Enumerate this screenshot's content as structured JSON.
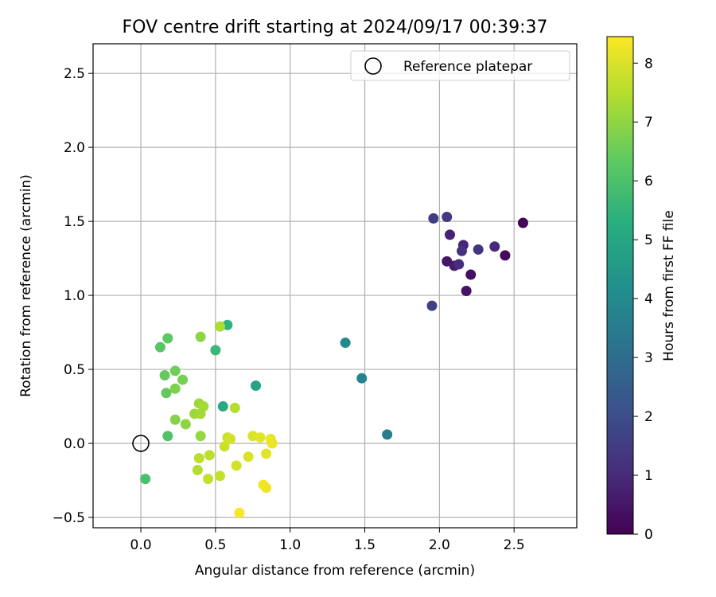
{
  "chart_data": {
    "type": "scatter",
    "title": "FOV centre drift starting at 2024/09/17 00:39:37",
    "xlabel": "Angular distance from reference (arcmin)",
    "ylabel": "Rotation from reference (arcmin)",
    "xlim": [
      -0.32,
      2.92
    ],
    "ylim": [
      -0.57,
      2.7
    ],
    "xticks": [
      0.0,
      0.5,
      1.0,
      1.5,
      2.0,
      2.5
    ],
    "xtick_labels": [
      "0.0",
      "0.5",
      "1.0",
      "1.5",
      "2.0",
      "2.5"
    ],
    "yticks": [
      -0.5,
      0.0,
      0.5,
      1.0,
      1.5,
      2.0,
      2.5
    ],
    "ytick_labels": [
      "−0.5",
      "0.0",
      "0.5",
      "1.0",
      "1.5",
      "2.0",
      "2.5"
    ],
    "grid": true,
    "legend": {
      "position": "upper right",
      "entries": [
        "Reference platepar"
      ]
    },
    "reference_point": {
      "x": 0.0,
      "y": 0.0
    },
    "colorbar": {
      "label": "Hours from first FF file",
      "colormap": "viridis",
      "range": [
        0,
        8.45
      ],
      "ticks": [
        0,
        1,
        2,
        3,
        4,
        5,
        6,
        7,
        8
      ],
      "tick_labels": [
        "0",
        "1",
        "2",
        "3",
        "4",
        "5",
        "6",
        "7",
        "8"
      ]
    },
    "points": [
      {
        "x": 2.56,
        "y": 1.49,
        "c": 0.1
      },
      {
        "x": 2.44,
        "y": 1.27,
        "c": 0.2
      },
      {
        "x": 2.21,
        "y": 1.14,
        "c": 0.3
      },
      {
        "x": 2.18,
        "y": 1.03,
        "c": 0.4
      },
      {
        "x": 2.05,
        "y": 1.23,
        "c": 0.5
      },
      {
        "x": 2.1,
        "y": 1.2,
        "c": 0.6
      },
      {
        "x": 2.07,
        "y": 1.41,
        "c": 0.8
      },
      {
        "x": 2.16,
        "y": 1.34,
        "c": 0.9
      },
      {
        "x": 2.37,
        "y": 1.33,
        "c": 1.0
      },
      {
        "x": 2.13,
        "y": 1.21,
        "c": 1.1
      },
      {
        "x": 2.15,
        "y": 1.3,
        "c": 1.2
      },
      {
        "x": 2.26,
        "y": 1.31,
        "c": 1.3
      },
      {
        "x": 2.05,
        "y": 1.53,
        "c": 1.4
      },
      {
        "x": 1.96,
        "y": 1.52,
        "c": 1.5
      },
      {
        "x": 1.95,
        "y": 0.93,
        "c": 1.6
      },
      {
        "x": 1.65,
        "y": 0.06,
        "c": 3.6
      },
      {
        "x": 1.48,
        "y": 0.44,
        "c": 3.8
      },
      {
        "x": 1.37,
        "y": 0.68,
        "c": 4.0
      },
      {
        "x": 0.77,
        "y": 0.39,
        "c": 4.9
      },
      {
        "x": 0.55,
        "y": 0.25,
        "c": 5.1
      },
      {
        "x": 0.58,
        "y": 0.8,
        "c": 5.4
      },
      {
        "x": 0.5,
        "y": 0.63,
        "c": 5.7
      },
      {
        "x": 0.03,
        "y": -0.24,
        "c": 6.0
      },
      {
        "x": 0.18,
        "y": 0.05,
        "c": 6.1
      },
      {
        "x": 0.13,
        "y": 0.65,
        "c": 6.2
      },
      {
        "x": 0.18,
        "y": 0.71,
        "c": 6.3
      },
      {
        "x": 0.17,
        "y": 0.34,
        "c": 6.4
      },
      {
        "x": 0.16,
        "y": 0.46,
        "c": 6.4
      },
      {
        "x": 0.23,
        "y": 0.49,
        "c": 6.6
      },
      {
        "x": 0.28,
        "y": 0.43,
        "c": 6.7
      },
      {
        "x": 0.23,
        "y": 0.37,
        "c": 6.8
      },
      {
        "x": 0.23,
        "y": 0.16,
        "c": 6.9
      },
      {
        "x": 0.3,
        "y": 0.13,
        "c": 7.0
      },
      {
        "x": 0.4,
        "y": 0.72,
        "c": 7.0
      },
      {
        "x": 0.4,
        "y": 0.05,
        "c": 7.1
      },
      {
        "x": 0.36,
        "y": 0.2,
        "c": 7.2
      },
      {
        "x": 0.39,
        "y": 0.27,
        "c": 7.2
      },
      {
        "x": 0.42,
        "y": 0.25,
        "c": 7.3
      },
      {
        "x": 0.4,
        "y": 0.2,
        "c": 7.3
      },
      {
        "x": 0.53,
        "y": 0.79,
        "c": 7.4
      },
      {
        "x": 0.63,
        "y": 0.24,
        "c": 7.5
      },
      {
        "x": 0.38,
        "y": -0.18,
        "c": 7.5
      },
      {
        "x": 0.39,
        "y": -0.1,
        "c": 7.6
      },
      {
        "x": 0.46,
        "y": -0.08,
        "c": 7.6
      },
      {
        "x": 0.45,
        "y": -0.24,
        "c": 7.7
      },
      {
        "x": 0.53,
        "y": -0.22,
        "c": 7.7
      },
      {
        "x": 0.56,
        "y": -0.02,
        "c": 7.8
      },
      {
        "x": 0.58,
        "y": 0.04,
        "c": 7.8
      },
      {
        "x": 0.6,
        "y": 0.03,
        "c": 7.9
      },
      {
        "x": 0.64,
        "y": -0.15,
        "c": 7.9
      },
      {
        "x": 0.72,
        "y": -0.09,
        "c": 8.0
      },
      {
        "x": 0.75,
        "y": 0.05,
        "c": 8.0
      },
      {
        "x": 0.8,
        "y": 0.04,
        "c": 8.1
      },
      {
        "x": 0.84,
        "y": -0.07,
        "c": 8.1
      },
      {
        "x": 0.87,
        "y": 0.03,
        "c": 8.2
      },
      {
        "x": 0.88,
        "y": 0.0,
        "c": 8.2
      },
      {
        "x": 0.82,
        "y": -0.28,
        "c": 8.3
      },
      {
        "x": 0.84,
        "y": -0.3,
        "c": 8.3
      },
      {
        "x": 0.66,
        "y": -0.47,
        "c": 8.4
      }
    ]
  }
}
